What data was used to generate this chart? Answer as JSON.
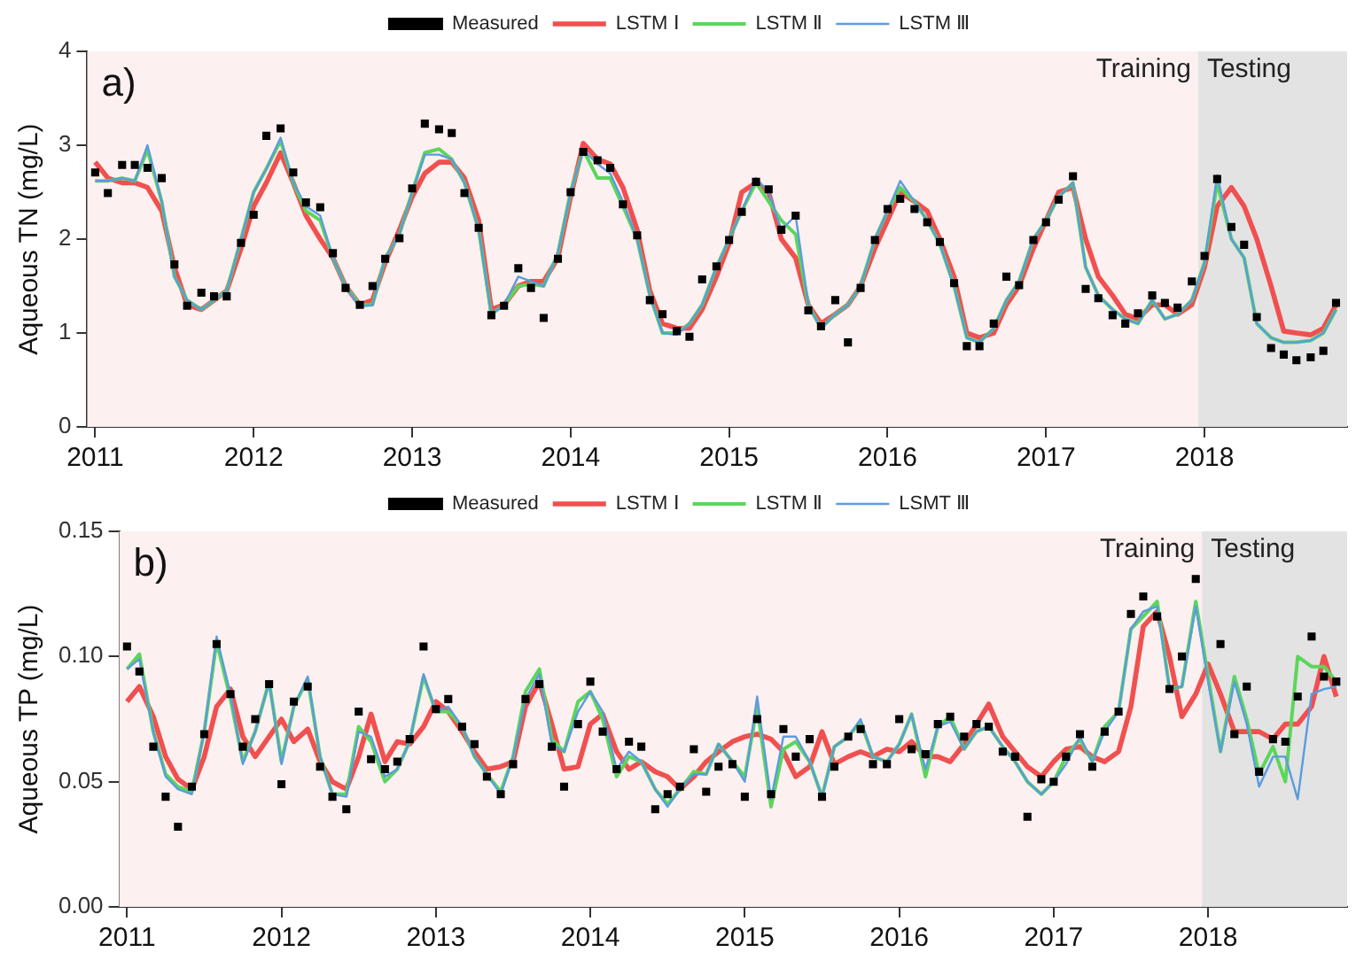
{
  "chart_data": [
    {
      "type": "line",
      "ylabel": "Aqueous TN (mg/L)",
      "annotations": [
        "a)"
      ],
      "x": [
        2011.0,
        2011.08,
        2011.17,
        2011.25,
        2011.33,
        2011.42,
        2011.5,
        2011.58,
        2011.67,
        2011.75,
        2011.83,
        2011.92,
        2012.0,
        2012.08,
        2012.17,
        2012.25,
        2012.33,
        2012.42,
        2012.5,
        2012.58,
        2012.67,
        2012.75,
        2012.83,
        2012.92,
        2013.0,
        2013.08,
        2013.17,
        2013.25,
        2013.33,
        2013.42,
        2013.5,
        2013.58,
        2013.67,
        2013.75,
        2013.83,
        2013.92,
        2014.0,
        2014.08,
        2014.17,
        2014.25,
        2014.33,
        2014.42,
        2014.5,
        2014.58,
        2014.67,
        2014.75,
        2014.83,
        2014.92,
        2015.0,
        2015.08,
        2015.17,
        2015.25,
        2015.33,
        2015.42,
        2015.5,
        2015.58,
        2015.67,
        2015.75,
        2015.83,
        2015.92,
        2016.0,
        2016.08,
        2016.17,
        2016.25,
        2016.33,
        2016.42,
        2016.5,
        2016.58,
        2016.67,
        2016.75,
        2016.83,
        2016.92,
        2017.0,
        2017.08,
        2017.17,
        2017.25,
        2017.33,
        2017.42,
        2017.5,
        2017.58,
        2017.67,
        2017.75,
        2017.83,
        2017.92,
        2018.0,
        2018.08,
        2018.17,
        2018.25,
        2018.33,
        2018.42,
        2018.5,
        2018.58,
        2018.67,
        2018.75,
        2018.83
      ],
      "series": [
        {
          "name": "Measured",
          "type": "scatter",
          "marker": "square",
          "color": "#000000",
          "values": [
            2.71,
            2.49,
            2.79,
            2.79,
            2.76,
            2.65,
            1.73,
            1.29,
            1.43,
            1.39,
            1.39,
            1.96,
            2.26,
            3.1,
            3.18,
            2.71,
            2.39,
            2.34,
            1.85,
            1.48,
            1.3,
            1.5,
            1.79,
            2.01,
            2.54,
            3.23,
            3.17,
            3.13,
            2.49,
            2.12,
            1.19,
            1.29,
            1.69,
            1.48,
            1.16,
            1.79,
            2.5,
            2.93,
            2.84,
            2.76,
            2.37,
            2.04,
            1.35,
            1.2,
            1.02,
            0.96,
            1.57,
            1.71,
            1.99,
            2.29,
            2.61,
            2.53,
            2.1,
            2.25,
            1.24,
            1.07,
            1.35,
            0.9,
            1.48,
            1.99,
            2.32,
            2.43,
            2.32,
            2.18,
            1.97,
            1.53,
            0.86,
            0.86,
            1.1,
            1.6,
            1.51,
            1.99,
            2.18,
            2.42,
            2.67,
            1.47,
            1.37,
            1.19,
            1.1,
            1.21,
            1.4,
            1.32,
            1.27,
            1.55,
            1.82,
            2.64,
            2.13,
            1.94,
            1.17,
            0.84,
            0.77,
            0.71,
            0.74,
            0.81,
            1.32
          ]
        },
        {
          "name": "LSTM Ⅰ",
          "type": "line",
          "marker": "none",
          "color": "#f0504f",
          "values": [
            2.82,
            2.65,
            2.6,
            2.6,
            2.55,
            2.3,
            1.7,
            1.3,
            1.25,
            1.35,
            1.45,
            1.9,
            2.35,
            2.6,
            2.92,
            2.6,
            2.25,
            2.0,
            1.8,
            1.5,
            1.3,
            1.35,
            1.75,
            2.1,
            2.45,
            2.7,
            2.82,
            2.82,
            2.65,
            2.2,
            1.25,
            1.3,
            1.5,
            1.55,
            1.55,
            1.8,
            2.45,
            3.02,
            2.85,
            2.8,
            2.55,
            2.1,
            1.45,
            1.1,
            1.05,
            1.05,
            1.25,
            1.6,
            1.95,
            2.5,
            2.6,
            2.5,
            2.0,
            1.8,
            1.3,
            1.1,
            1.2,
            1.3,
            1.5,
            1.9,
            2.2,
            2.5,
            2.4,
            2.3,
            2.0,
            1.6,
            1.0,
            0.95,
            1.0,
            1.3,
            1.5,
            1.9,
            2.2,
            2.5,
            2.55,
            2.0,
            1.6,
            1.4,
            1.2,
            1.15,
            1.3,
            1.3,
            1.2,
            1.3,
            1.7,
            2.35,
            2.55,
            2.35,
            2.0,
            1.5,
            1.02,
            1.0,
            0.98,
            1.05,
            1.3
          ]
        },
        {
          "name": "LSTM Ⅱ",
          "type": "line",
          "marker": "none",
          "color": "#5bd65b",
          "values": [
            2.62,
            2.62,
            2.65,
            2.62,
            2.95,
            2.4,
            1.6,
            1.35,
            1.25,
            1.35,
            1.45,
            2.0,
            2.5,
            2.75,
            3.05,
            2.6,
            2.3,
            2.2,
            1.8,
            1.5,
            1.3,
            1.3,
            1.8,
            2.05,
            2.5,
            2.92,
            2.96,
            2.85,
            2.6,
            2.1,
            1.2,
            1.3,
            1.5,
            1.52,
            1.5,
            1.85,
            2.5,
            2.95,
            2.65,
            2.65,
            2.35,
            2.0,
            1.4,
            1.0,
            1.0,
            1.1,
            1.3,
            1.7,
            2.0,
            2.3,
            2.6,
            2.4,
            2.2,
            2.05,
            1.3,
            1.05,
            1.2,
            1.3,
            1.5,
            2.0,
            2.3,
            2.55,
            2.4,
            2.2,
            1.95,
            1.5,
            0.95,
            0.9,
            1.05,
            1.35,
            1.55,
            2.0,
            2.2,
            2.45,
            2.6,
            1.7,
            1.4,
            1.25,
            1.15,
            1.1,
            1.35,
            1.15,
            1.2,
            1.35,
            1.75,
            2.6,
            2.0,
            1.8,
            1.1,
            0.95,
            0.9,
            0.9,
            0.92,
            1.0,
            1.25
          ]
        },
        {
          "name": "LSTM Ⅲ",
          "type": "line",
          "marker": "none",
          "color": "#5b9bdf",
          "values": [
            2.62,
            2.62,
            2.65,
            2.62,
            3.0,
            2.4,
            1.6,
            1.35,
            1.25,
            1.35,
            1.45,
            2.0,
            2.5,
            2.75,
            3.08,
            2.6,
            2.35,
            2.25,
            1.8,
            1.5,
            1.28,
            1.3,
            1.8,
            2.05,
            2.5,
            2.9,
            2.9,
            2.85,
            2.6,
            2.1,
            1.2,
            1.3,
            1.6,
            1.55,
            1.5,
            1.85,
            2.5,
            2.95,
            2.8,
            2.7,
            2.4,
            2.0,
            1.4,
            1.0,
            0.98,
            1.1,
            1.3,
            1.7,
            2.0,
            2.3,
            2.65,
            2.5,
            2.1,
            2.25,
            1.3,
            1.05,
            1.2,
            1.3,
            1.5,
            2.0,
            2.3,
            2.62,
            2.4,
            2.2,
            1.95,
            1.5,
            0.95,
            0.9,
            1.05,
            1.35,
            1.55,
            2.0,
            2.2,
            2.45,
            2.6,
            1.7,
            1.4,
            1.25,
            1.15,
            1.1,
            1.35,
            1.15,
            1.2,
            1.35,
            1.75,
            2.68,
            2.0,
            1.8,
            1.1,
            0.95,
            0.9,
            0.9,
            0.92,
            1.0,
            1.25
          ]
        }
      ],
      "xlim": [
        2010.95,
        2018.9
      ],
      "xticks": [
        2011,
        2012,
        2013,
        2014,
        2015,
        2016,
        2017,
        2018
      ],
      "ylim": [
        0,
        4
      ],
      "yticks": [
        0,
        1,
        2,
        3,
        4
      ],
      "bands": [
        {
          "axis": "x",
          "from": 2010.95,
          "to": 2017.96,
          "label": "Training",
          "color": "#fdf0f0"
        },
        {
          "axis": "x",
          "from": 2017.96,
          "to": 2018.9,
          "label": "Testing",
          "color": "#e3e3e3"
        }
      ],
      "grid": false,
      "legend": "top"
    },
    {
      "type": "line",
      "ylabel": "Aqueous TP (mg/L)",
      "annotations": [
        "b)"
      ],
      "x": [
        2011.0,
        2011.08,
        2011.17,
        2011.25,
        2011.33,
        2011.42,
        2011.5,
        2011.58,
        2011.67,
        2011.75,
        2011.83,
        2011.92,
        2012.0,
        2012.08,
        2012.17,
        2012.25,
        2012.33,
        2012.42,
        2012.5,
        2012.58,
        2012.67,
        2012.75,
        2012.83,
        2012.92,
        2013.0,
        2013.08,
        2013.17,
        2013.25,
        2013.33,
        2013.42,
        2013.5,
        2013.58,
        2013.67,
        2013.75,
        2013.83,
        2013.92,
        2014.0,
        2014.08,
        2014.17,
        2014.25,
        2014.33,
        2014.42,
        2014.5,
        2014.58,
        2014.67,
        2014.75,
        2014.83,
        2014.92,
        2015.0,
        2015.08,
        2015.17,
        2015.25,
        2015.33,
        2015.42,
        2015.5,
        2015.58,
        2015.67,
        2015.75,
        2015.83,
        2015.92,
        2016.0,
        2016.08,
        2016.17,
        2016.25,
        2016.33,
        2016.42,
        2016.5,
        2016.58,
        2016.67,
        2016.75,
        2016.83,
        2016.92,
        2017.0,
        2017.08,
        2017.17,
        2017.25,
        2017.33,
        2017.42,
        2017.5,
        2017.58,
        2017.67,
        2017.75,
        2017.83,
        2017.92,
        2018.0,
        2018.08,
        2018.17,
        2018.25,
        2018.33,
        2018.42,
        2018.5,
        2018.58,
        2018.67,
        2018.75,
        2018.83
      ],
      "series": [
        {
          "name": "Measured",
          "type": "scatter",
          "marker": "square",
          "color": "#000000",
          "values": [
            0.104,
            0.094,
            0.064,
            0.044,
            0.032,
            0.048,
            0.069,
            0.105,
            0.085,
            0.064,
            0.075,
            0.089,
            0.049,
            0.082,
            0.088,
            0.056,
            0.044,
            0.039,
            0.078,
            0.059,
            0.055,
            0.058,
            0.067,
            0.104,
            0.079,
            0.083,
            0.072,
            0.065,
            0.052,
            0.045,
            0.057,
            0.083,
            0.089,
            0.064,
            0.048,
            0.073,
            0.09,
            0.07,
            0.055,
            0.066,
            0.064,
            0.039,
            0.045,
            0.048,
            0.063,
            0.046,
            0.056,
            0.057,
            0.044,
            0.075,
            0.045,
            0.071,
            0.06,
            0.067,
            0.044,
            0.056,
            0.068,
            0.071,
            0.057,
            0.057,
            0.075,
            0.063,
            0.061,
            0.073,
            0.076,
            0.068,
            0.073,
            0.072,
            0.062,
            0.06,
            0.036,
            0.051,
            0.05,
            0.06,
            0.069,
            0.056,
            0.07,
            0.078,
            0.117,
            0.124,
            0.116,
            0.087,
            0.1,
            0.131,
            null,
            0.105,
            0.069,
            0.088,
            0.054,
            0.067,
            0.066,
            0.084,
            0.108,
            0.092,
            0.09
          ]
        },
        {
          "name": "LSTM Ⅰ",
          "type": "line",
          "marker": "none",
          "color": "#f0504f",
          "values": [
            0.082,
            0.088,
            0.076,
            0.06,
            0.051,
            0.047,
            0.06,
            0.08,
            0.087,
            0.068,
            0.06,
            0.068,
            0.075,
            0.066,
            0.071,
            0.058,
            0.05,
            0.047,
            0.06,
            0.077,
            0.058,
            0.066,
            0.065,
            0.072,
            0.082,
            0.078,
            0.07,
            0.062,
            0.055,
            0.056,
            0.058,
            0.08,
            0.09,
            0.073,
            0.055,
            0.056,
            0.073,
            0.077,
            0.062,
            0.055,
            0.058,
            0.054,
            0.052,
            0.047,
            0.052,
            0.058,
            0.062,
            0.066,
            0.068,
            0.069,
            0.067,
            0.062,
            0.052,
            0.056,
            0.07,
            0.057,
            0.06,
            0.062,
            0.06,
            0.063,
            0.062,
            0.066,
            0.06,
            0.06,
            0.058,
            0.065,
            0.073,
            0.081,
            0.068,
            0.062,
            0.056,
            0.052,
            0.058,
            0.063,
            0.064,
            0.06,
            0.058,
            0.062,
            0.08,
            0.112,
            0.118,
            0.1,
            0.076,
            0.085,
            0.097,
            0.085,
            0.07,
            0.07,
            0.07,
            0.067,
            0.073,
            0.073,
            0.08,
            0.1,
            0.084
          ]
        },
        {
          "name": "LSTM Ⅱ",
          "type": "line",
          "marker": "none",
          "color": "#5bd65b",
          "values": [
            0.095,
            0.101,
            0.07,
            0.053,
            0.048,
            0.046,
            0.07,
            0.106,
            0.083,
            0.058,
            0.07,
            0.09,
            0.058,
            0.08,
            0.091,
            0.06,
            0.045,
            0.045,
            0.072,
            0.066,
            0.05,
            0.055,
            0.066,
            0.092,
            0.078,
            0.078,
            0.072,
            0.06,
            0.053,
            0.046,
            0.06,
            0.086,
            0.095,
            0.067,
            0.062,
            0.082,
            0.086,
            0.075,
            0.052,
            0.06,
            0.058,
            0.047,
            0.041,
            0.047,
            0.054,
            0.053,
            0.065,
            0.058,
            0.052,
            0.08,
            0.04,
            0.063,
            0.066,
            0.058,
            0.044,
            0.064,
            0.068,
            0.074,
            0.06,
            0.058,
            0.065,
            0.077,
            0.052,
            0.072,
            0.076,
            0.063,
            0.07,
            0.072,
            0.064,
            0.058,
            0.05,
            0.045,
            0.05,
            0.06,
            0.067,
            0.058,
            0.072,
            0.078,
            0.111,
            0.116,
            0.122,
            0.087,
            0.088,
            0.122,
            0.092,
            0.062,
            0.092,
            0.075,
            0.053,
            0.064,
            0.05,
            0.1,
            0.096,
            0.096,
            0.09
          ]
        },
        {
          "name": "LSMT Ⅲ",
          "type": "line",
          "marker": "none",
          "color": "#5b9bdf",
          "values": [
            0.095,
            0.099,
            0.07,
            0.052,
            0.047,
            0.045,
            0.07,
            0.108,
            0.085,
            0.057,
            0.07,
            0.09,
            0.057,
            0.08,
            0.092,
            0.06,
            0.045,
            0.044,
            0.07,
            0.068,
            0.052,
            0.055,
            0.066,
            0.093,
            0.078,
            0.08,
            0.072,
            0.06,
            0.053,
            0.045,
            0.06,
            0.083,
            0.093,
            0.065,
            0.062,
            0.078,
            0.086,
            0.078,
            0.055,
            0.062,
            0.058,
            0.047,
            0.04,
            0.047,
            0.053,
            0.053,
            0.065,
            0.058,
            0.05,
            0.084,
            0.043,
            0.068,
            0.068,
            0.058,
            0.044,
            0.064,
            0.068,
            0.075,
            0.06,
            0.058,
            0.065,
            0.077,
            0.055,
            0.072,
            0.074,
            0.063,
            0.07,
            0.072,
            0.064,
            0.058,
            0.05,
            0.045,
            0.05,
            0.057,
            0.068,
            0.058,
            0.07,
            0.078,
            0.111,
            0.118,
            0.12,
            0.087,
            0.088,
            0.12,
            0.09,
            0.062,
            0.09,
            0.073,
            0.048,
            0.06,
            0.06,
            0.043,
            0.085,
            0.087,
            0.088
          ]
        }
      ],
      "xlim": [
        2010.95,
        2018.9
      ],
      "xticks": [
        2011,
        2012,
        2013,
        2014,
        2015,
        2016,
        2017,
        2018
      ],
      "ylim": [
        0,
        0.15
      ],
      "yticks": [
        {
          "value": 0,
          "label": "0.00"
        },
        {
          "value": 0.05,
          "label": "0.05"
        },
        {
          "value": 0.1,
          "label": "0.10"
        },
        {
          "value": 0.15,
          "label": "0.15"
        }
      ],
      "bands": [
        {
          "axis": "x",
          "from": 2010.95,
          "to": 2017.96,
          "label": "Training",
          "color": "#fdf0f0"
        },
        {
          "axis": "x",
          "from": 2017.96,
          "to": 2018.9,
          "label": "Testing",
          "color": "#e3e3e3"
        }
      ],
      "grid": false,
      "legend": "top"
    }
  ]
}
